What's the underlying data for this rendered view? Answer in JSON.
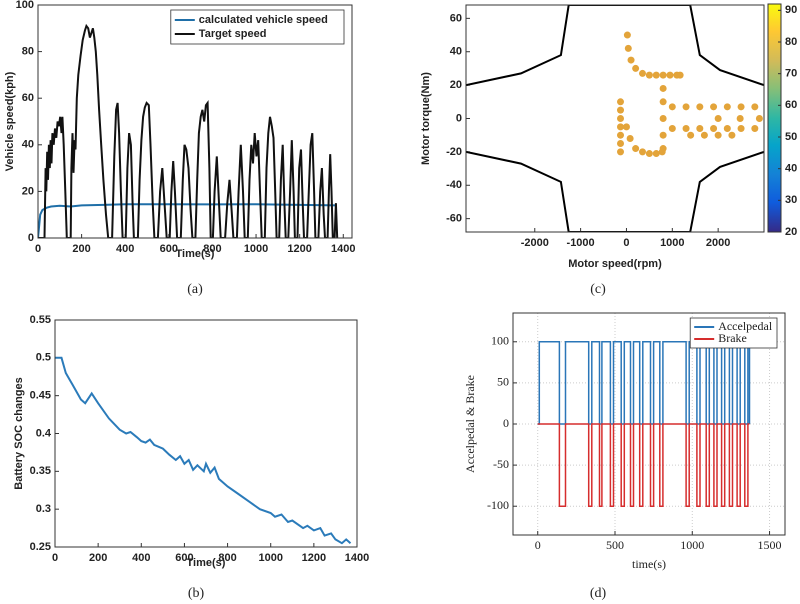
{
  "chart_data": [
    {
      "type": "line",
      "caption": "(a)",
      "xlabel": "Time(s)",
      "ylabel": "Vehicle speed(kph)",
      "xlim": [
        0,
        1440
      ],
      "xticks": [
        0,
        200,
        400,
        600,
        800,
        1000,
        1200,
        1400
      ],
      "ylim": [
        0,
        100
      ],
      "yticks": [
        0,
        20,
        40,
        60,
        80,
        100
      ],
      "grid": false,
      "legend": "upper right",
      "series": [
        {
          "name": "calculated vehicle speed",
          "color": "#1f6fa8",
          "x": [
            0,
            10,
            20,
            40,
            60,
            100,
            150,
            200,
            300,
            400,
            600,
            800,
            1000,
            1200,
            1370
          ],
          "values": [
            0,
            10,
            12,
            13,
            13.5,
            13.8,
            13.5,
            14,
            14.2,
            14.5,
            14.5,
            14.4,
            14.5,
            14.2,
            14
          ]
        },
        {
          "name": "Target speed",
          "color": "#111111",
          "x": [
            0,
            30,
            35,
            38,
            42,
            46,
            50,
            54,
            58,
            62,
            66,
            72,
            78,
            84,
            90,
            96,
            102,
            108,
            112,
            118,
            125,
            132,
            150,
            153,
            158,
            163,
            168,
            172,
            178,
            185,
            195,
            205,
            215,
            222,
            230,
            238,
            245,
            252,
            258,
            265,
            272,
            280,
            290,
            300,
            312,
            322,
            340,
            350,
            358,
            365,
            372,
            380,
            388,
            402,
            410,
            418,
            426,
            434,
            440,
            458,
            466,
            474,
            482,
            490,
            498,
            508,
            516,
            526,
            534,
            550,
            560,
            570,
            580,
            590,
            604,
            612,
            620,
            628,
            638,
            655,
            664,
            672,
            680,
            690,
            700,
            708,
            722,
            730,
            738,
            746,
            754,
            762,
            770,
            778,
            786,
            792,
            802,
            810,
            820,
            830,
            838,
            858,
            868,
            878,
            888,
            896,
            912,
            920,
            930,
            940,
            948,
            962,
            970,
            978,
            986,
            994,
            1002,
            1010,
            1018,
            1026,
            1040,
            1048,
            1056,
            1064,
            1072,
            1080,
            1088,
            1094,
            1106,
            1114,
            1122,
            1130,
            1136,
            1148,
            1156,
            1164,
            1172,
            1178,
            1190,
            1198,
            1206,
            1214,
            1220,
            1234,
            1242,
            1250,
            1258,
            1266,
            1272,
            1286,
            1294,
            1302,
            1310,
            1316,
            1328,
            1334,
            1340,
            1346,
            1352,
            1360,
            1366,
            1372
          ],
          "values": [
            0,
            0,
            30,
            20,
            37,
            25,
            40,
            30,
            42,
            32,
            45,
            40,
            47,
            43,
            50,
            48,
            52,
            45,
            52,
            40,
            20,
            0,
            0,
            30,
            45,
            28,
            42,
            38,
            60,
            70,
            78,
            85,
            89,
            91,
            90,
            86,
            88,
            90,
            86,
            80,
            70,
            55,
            40,
            25,
            10,
            0,
            0,
            35,
            55,
            58,
            45,
            20,
            0,
            0,
            30,
            45,
            40,
            15,
            0,
            0,
            25,
            42,
            52,
            56,
            58,
            57,
            40,
            15,
            0,
            0,
            20,
            30,
            15,
            0,
            0,
            20,
            33,
            20,
            0,
            0,
            25,
            40,
            38,
            30,
            12,
            0,
            0,
            25,
            45,
            52,
            55,
            50,
            57,
            58,
            30,
            0,
            0,
            20,
            35,
            15,
            0,
            0,
            15,
            25,
            12,
            0,
            0,
            20,
            40,
            20,
            0,
            0,
            25,
            40,
            32,
            45,
            35,
            42,
            20,
            0,
            0,
            30,
            45,
            52,
            48,
            43,
            20,
            0,
            0,
            25,
            40,
            15,
            0,
            0,
            20,
            42,
            20,
            0,
            0,
            30,
            38,
            15,
            0,
            0,
            20,
            40,
            45,
            20,
            0,
            0,
            20,
            30,
            10,
            0,
            0,
            20,
            36,
            20,
            0,
            0,
            15,
            0
          ]
        }
      ]
    },
    {
      "type": "contour",
      "caption": "(c)",
      "xlabel": "Motor speed(rpm)",
      "ylabel": "Motor torque(Nm)",
      "xlim": [
        -3500,
        3000
      ],
      "xticks": [
        -2000,
        -1000,
        0,
        1000,
        2000
      ],
      "ylim": [
        -68,
        68
      ],
      "yticks": [
        -60,
        -40,
        -20,
        0,
        20,
        40,
        60
      ],
      "clim": [
        20,
        92
      ],
      "cticks": [
        20,
        30,
        40,
        50,
        60,
        70,
        80,
        90
      ],
      "series": [
        {
          "mode": "line",
          "color": "#000000",
          "x": [
            -3500,
            -2300,
            -1430,
            -1260,
            1390,
            1600,
            2040,
            3000
          ],
          "values": [
            20,
            27,
            38,
            68,
            68,
            38,
            29,
            20
          ]
        },
        {
          "mode": "line",
          "color": "#000000",
          "x": [
            -3500,
            -2300,
            -1430,
            -1260,
            1390,
            1600,
            2040,
            3000
          ],
          "values": [
            -20,
            -27,
            -38,
            -68,
            -68,
            -38,
            -29,
            -20
          ]
        },
        {
          "mode": "markers",
          "color": "#e3a43a",
          "x": [
            -130,
            -130,
            -130,
            -130,
            -130,
            -130,
            -130,
            20,
            40,
            100,
            200,
            350,
            500,
            650,
            800,
            950,
            1100,
            1170,
            800,
            800,
            800,
            800,
            800,
            0,
            80,
            200,
            350,
            500,
            650,
            780,
            1000,
            1300,
            1600,
            1900,
            2200,
            2500,
            2800,
            1000,
            1300,
            1600,
            1900,
            2200,
            2500,
            2800,
            2000,
            2480,
            2900,
            1400,
            1700,
            2000,
            2300
          ],
          "values": [
            -20,
            -15,
            -10,
            -5,
            0,
            5,
            10,
            50,
            42,
            35,
            30,
            27,
            26,
            26,
            26,
            26,
            26,
            26,
            18,
            10,
            0,
            -10,
            -18,
            -5,
            -12,
            -18,
            -20,
            -21,
            -21,
            -20,
            7,
            7,
            7,
            7,
            7,
            7,
            7,
            -6,
            -6,
            -6,
            -6,
            -6,
            -6,
            -6,
            0,
            0,
            0,
            -10,
            -10,
            -10,
            -10
          ]
        }
      ]
    },
    {
      "type": "line",
      "caption": "(b)",
      "xlabel": "Time(s)",
      "ylabel": "Battery SOC changes",
      "xlim": [
        0,
        1400
      ],
      "xticks": [
        0,
        200,
        400,
        600,
        800,
        1000,
        1200,
        1400
      ],
      "ylim": [
        0.25,
        0.55
      ],
      "yticks": [
        0.25,
        0.3,
        0.35,
        0.4,
        0.45,
        0.5,
        0.55
      ],
      "grid": false,
      "x": [
        0,
        30,
        50,
        80,
        120,
        140,
        170,
        200,
        250,
        300,
        330,
        350,
        380,
        400,
        420,
        440,
        460,
        500,
        530,
        560,
        580,
        600,
        620,
        640,
        660,
        690,
        700,
        720,
        740,
        760,
        800,
        850,
        900,
        950,
        1000,
        1020,
        1050,
        1080,
        1100,
        1150,
        1170,
        1200,
        1230,
        1250,
        1280,
        1300,
        1330,
        1350,
        1370
      ],
      "series": [
        {
          "color": "#2b7bba",
          "values": [
            0.5,
            0.5,
            0.48,
            0.465,
            0.445,
            0.44,
            0.453,
            0.44,
            0.42,
            0.405,
            0.4,
            0.402,
            0.395,
            0.39,
            0.388,
            0.392,
            0.385,
            0.38,
            0.372,
            0.365,
            0.37,
            0.36,
            0.365,
            0.352,
            0.358,
            0.35,
            0.36,
            0.348,
            0.355,
            0.34,
            0.33,
            0.32,
            0.31,
            0.3,
            0.295,
            0.29,
            0.293,
            0.283,
            0.285,
            0.275,
            0.278,
            0.272,
            0.275,
            0.265,
            0.268,
            0.26,
            0.255,
            0.26,
            0.255
          ]
        }
      ]
    },
    {
      "type": "line",
      "caption": "(d)",
      "xlabel": "time(s)",
      "ylabel": "Accelpedal & Brake",
      "xlim": [
        -160,
        1600
      ],
      "xticks": [
        0,
        500,
        1000,
        1500
      ],
      "ylim": [
        -135,
        135
      ],
      "yticks": [
        -100,
        -50,
        0,
        50,
        100
      ],
      "grid": true,
      "legend": "upper right",
      "x": [
        0,
        10,
        10,
        140,
        140,
        180,
        180,
        330,
        330,
        350,
        350,
        400,
        400,
        415,
        415,
        470,
        470,
        490,
        490,
        540,
        540,
        560,
        560,
        600,
        600,
        620,
        620,
        660,
        660,
        680,
        680,
        730,
        730,
        750,
        750,
        790,
        790,
        810,
        810,
        960,
        960,
        980,
        980,
        1030,
        1030,
        1050,
        1050,
        1090,
        1090,
        1110,
        1110,
        1140,
        1140,
        1160,
        1160,
        1190,
        1190,
        1210,
        1210,
        1240,
        1240,
        1260,
        1260,
        1290,
        1290,
        1310,
        1310,
        1340,
        1340,
        1360,
        1360,
        1370,
        1370
      ],
      "series": [
        {
          "name": "Accelpedal",
          "color": "#2a76b8",
          "values": [
            0,
            0,
            100,
            100,
            0,
            0,
            100,
            100,
            0,
            0,
            100,
            100,
            0,
            0,
            100,
            100,
            0,
            0,
            100,
            100,
            0,
            0,
            100,
            100,
            0,
            0,
            100,
            100,
            0,
            0,
            100,
            100,
            0,
            0,
            100,
            100,
            0,
            0,
            100,
            100,
            0,
            0,
            100,
            100,
            0,
            0,
            100,
            100,
            0,
            0,
            100,
            100,
            0,
            0,
            100,
            100,
            0,
            0,
            100,
            100,
            0,
            0,
            100,
            100,
            0,
            0,
            100,
            100,
            0,
            0,
            100,
            100,
            0
          ]
        },
        {
          "name": "Brake",
          "color": "#d62d2d",
          "values": [
            0,
            0,
            0,
            0,
            -100,
            -100,
            0,
            0,
            -100,
            -100,
            0,
            0,
            -100,
            -100,
            0,
            0,
            -100,
            -100,
            0,
            0,
            -100,
            -100,
            0,
            0,
            -100,
            -100,
            0,
            0,
            -100,
            -100,
            0,
            0,
            -100,
            -100,
            0,
            0,
            -100,
            -100,
            0,
            0,
            -100,
            -100,
            0,
            0,
            -100,
            -100,
            0,
            0,
            -100,
            -100,
            0,
            0,
            -100,
            -100,
            0,
            0,
            -100,
            -100,
            0,
            0,
            -100,
            -100,
            0,
            0,
            -100,
            -100,
            0,
            0,
            -100,
            -100,
            0,
            0,
            0
          ]
        }
      ]
    }
  ]
}
